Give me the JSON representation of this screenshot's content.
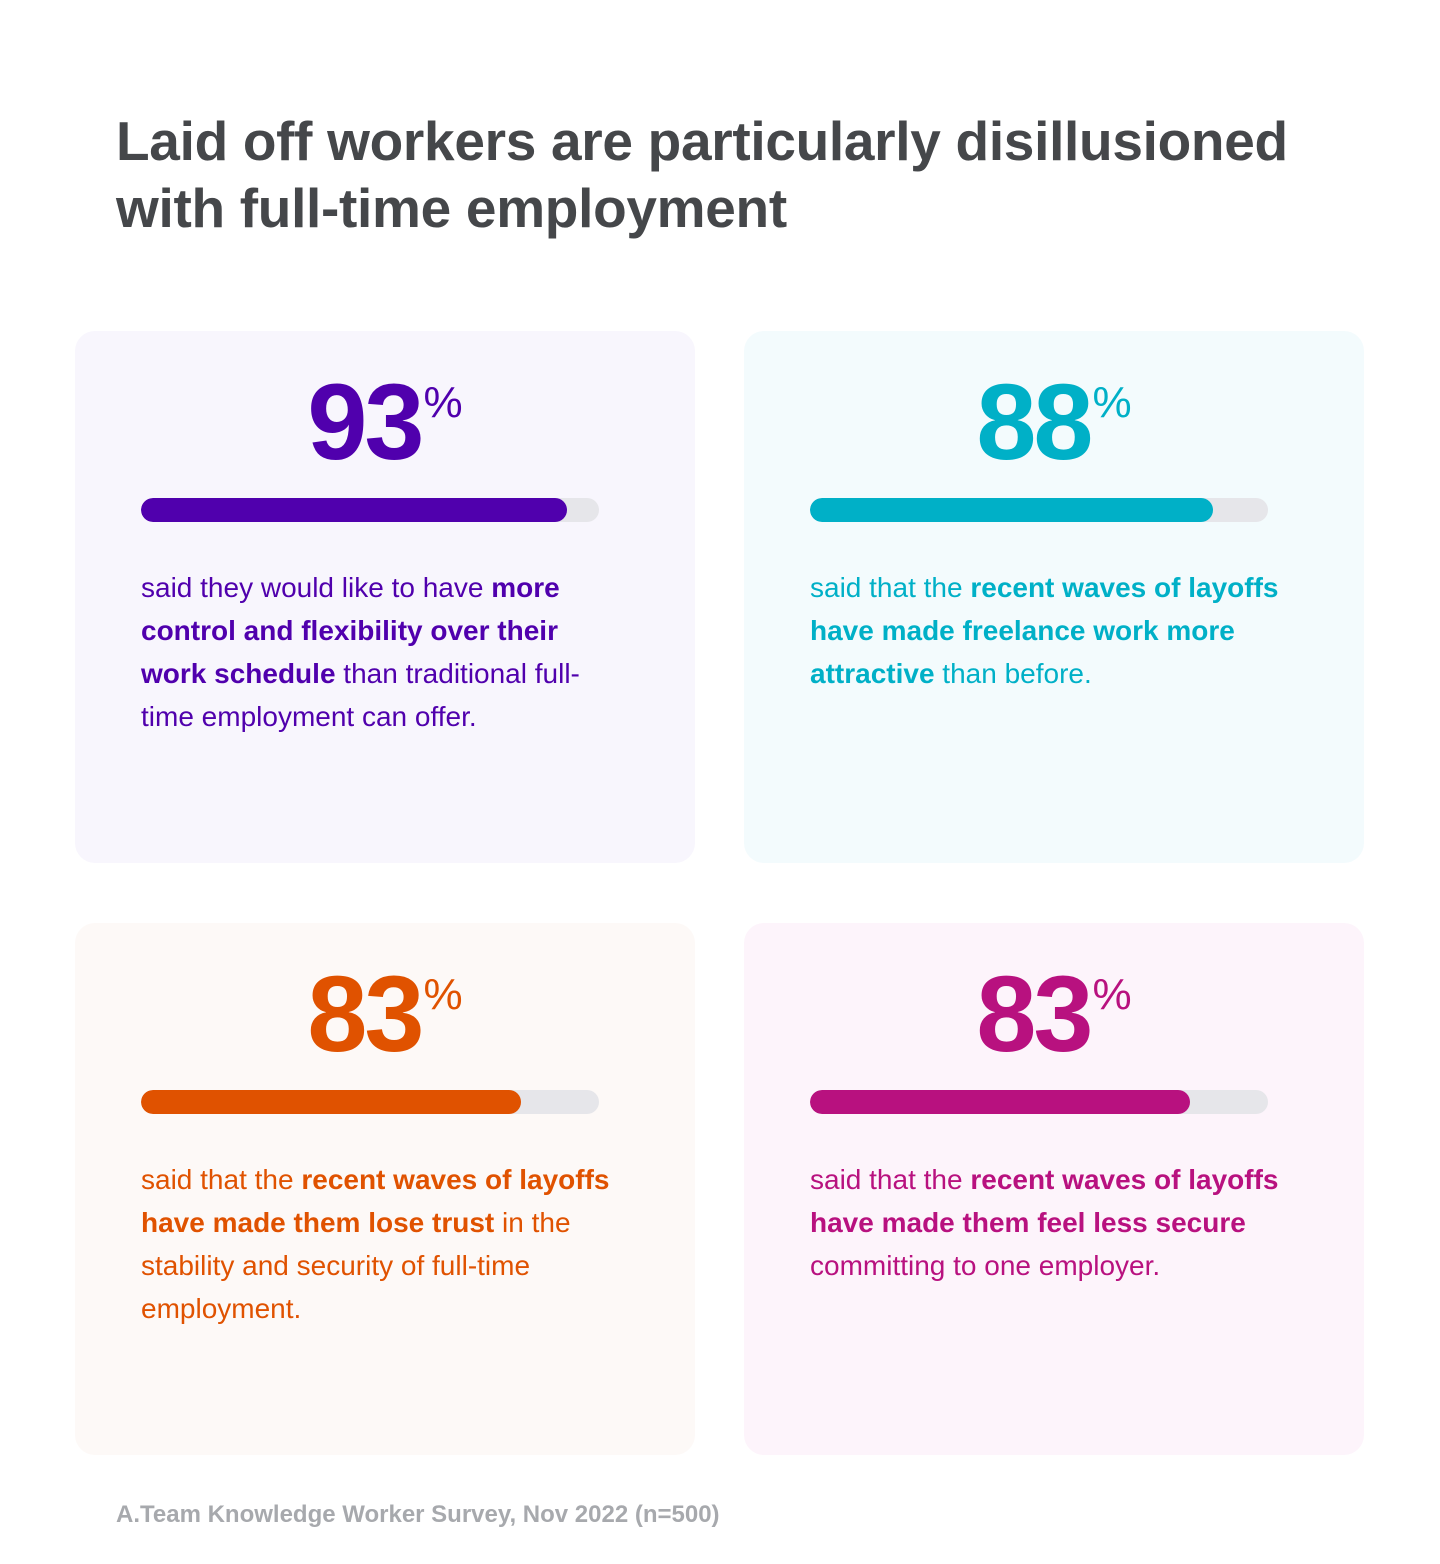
{
  "title": "Laid off workers are particularly disillusioned with full-time employment",
  "footnote": "A.Team Knowledge Worker Survey, Nov 2022 (n=500)",
  "chart_data": {
    "type": "bar",
    "stats": [
      {
        "value": 93,
        "unit": "%",
        "color": "#5000ad",
        "card_background": "#f8f6fd",
        "segments": [
          {
            "text": "said they would like to have ",
            "bold": false
          },
          {
            "text": "more control and flexibility over their work schedule",
            "bold": true
          },
          {
            "text": " than traditional full-time employment can offer.",
            "bold": false
          }
        ]
      },
      {
        "value": 88,
        "unit": "%",
        "color": "#00b0c7",
        "card_background": "#f3fbfd",
        "segments": [
          {
            "text": "said that the ",
            "bold": false
          },
          {
            "text": "recent waves of layoffs have made freelance work more attractive",
            "bold": true
          },
          {
            "text": " than before.",
            "bold": false
          }
        ]
      },
      {
        "value": 83,
        "unit": "%",
        "color": "#e05200",
        "card_background": "#fdf9f7",
        "segments": [
          {
            "text": "said that the ",
            "bold": false
          },
          {
            "text": "recent waves of layoffs have made them lose trust",
            "bold": true
          },
          {
            "text": " in the stability and security of full-time employment.",
            "bold": false
          }
        ]
      },
      {
        "value": 83,
        "unit": "%",
        "color": "#b8117f",
        "card_background": "#fdf4fb",
        "segments": [
          {
            "text": "said that the ",
            "bold": false
          },
          {
            "text": "recent waves of layoffs have made them feel less secure",
            "bold": true
          },
          {
            "text": " committing to one employer.",
            "bold": false
          }
        ]
      }
    ]
  }
}
